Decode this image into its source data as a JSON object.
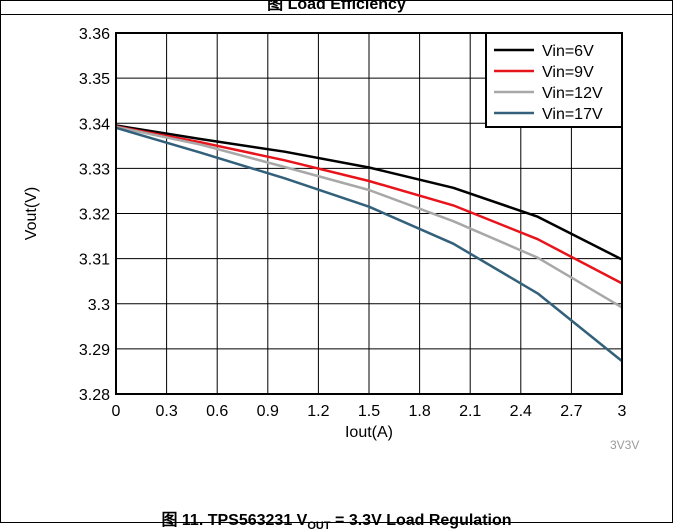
{
  "figure": {
    "top_caption_prefix": "图 ",
    "top_caption_suffix": " Load Efficiency",
    "bottom_caption_prefix": "图 11. TPS563231 V",
    "bottom_caption_sub": "OUT",
    "bottom_caption_suffix": " = 3.3V Load Regulation",
    "watermark": "3V3V"
  },
  "chart_data": {
    "type": "line",
    "title": "",
    "xlabel": "Iout(A)",
    "ylabel": "Vout(V)",
    "xlim": [
      0,
      3
    ],
    "ylim": [
      3.28,
      3.36
    ],
    "x_ticks": [
      0,
      0.3,
      0.6,
      0.9,
      1.2,
      1.5,
      1.8,
      2.1,
      2.4,
      2.7,
      3
    ],
    "x_tick_labels": [
      "0",
      "0.3",
      "0.6",
      "0.9",
      "1.2",
      "1.5",
      "1.8",
      "2.1",
      "2.4",
      "2.7",
      "3"
    ],
    "y_ticks": [
      3.28,
      3.29,
      3.3,
      3.31,
      3.32,
      3.33,
      3.34,
      3.35,
      3.36
    ],
    "y_tick_labels": [
      "3.28",
      "3.29",
      "3.3",
      "3.31",
      "3.32",
      "3.33",
      "3.34",
      "3.35",
      "3.36"
    ],
    "grid": true,
    "legend_position": "top-right",
    "x": [
      0,
      0.5,
      1.0,
      1.5,
      2.0,
      2.5,
      3.0
    ],
    "series": [
      {
        "name": "Vin=6V",
        "color": "#000000",
        "values": [
          3.3395,
          3.3365,
          3.3337,
          3.3302,
          3.3257,
          3.3193,
          3.3098
        ]
      },
      {
        "name": "Vin=9V",
        "color": "#e8141c",
        "values": [
          3.3393,
          3.3358,
          3.3318,
          3.3272,
          3.3218,
          3.3143,
          3.3045
        ]
      },
      {
        "name": "Vin=12V",
        "color": "#a8a8a8",
        "values": [
          3.3392,
          3.3353,
          3.3303,
          3.3252,
          3.3183,
          3.3102,
          3.2992
        ]
      },
      {
        "name": "Vin=17V",
        "color": "#33607a",
        "values": [
          3.339,
          3.3335,
          3.3278,
          3.3215,
          3.3133,
          3.3023,
          3.2873
        ]
      }
    ]
  }
}
